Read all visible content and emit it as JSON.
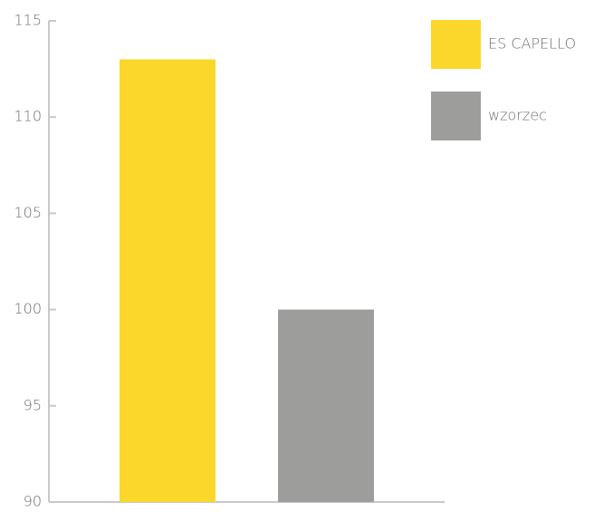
{
  "chart_data": {
    "type": "bar",
    "categories": [
      null
    ],
    "series": [
      {
        "name": "ES CAPELLO",
        "color": "#fbd72b",
        "values": [
          113
        ]
      },
      {
        "name": "wzorzec",
        "color": "#9d9d9b",
        "values": [
          100
        ]
      }
    ],
    "ylim": [
      90,
      115
    ],
    "yticks": [
      90,
      95,
      100,
      105,
      110,
      115
    ],
    "legend": "top-right"
  }
}
